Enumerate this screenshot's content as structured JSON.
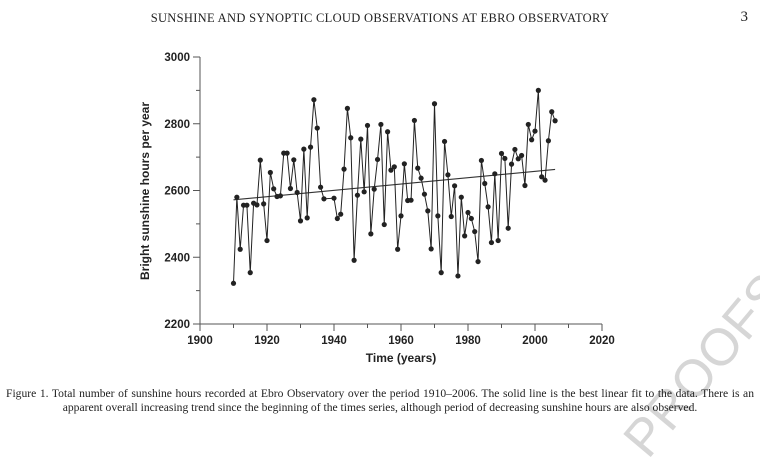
{
  "header": {
    "running_title": "SUNSHINE AND SYNOPTIC CLOUD OBSERVATIONS AT EBRO OBSERVATORY",
    "page_number": "3"
  },
  "watermark": "PROOFS",
  "caption": "Figure 1. Total number of sunshine hours recorded at Ebro Observatory over the period 1910–2006. The solid line is the best linear fit to the data. There is an apparent overall increasing trend since the beginning of the times series, although period of decreasing sunshine hours are also observed.",
  "chart_data": {
    "type": "line",
    "title": "",
    "xlabel": "Time (years)",
    "ylabel": "Bright sunshine hours per year",
    "xlim": [
      1900,
      2020
    ],
    "ylim": [
      2200,
      3000
    ],
    "xticks": [
      "1900",
      "1920",
      "1940",
      "1960",
      "1980",
      "2000",
      "2020"
    ],
    "yticks": [
      "2200",
      "2400",
      "2600",
      "2800",
      "3000"
    ],
    "grid": false,
    "markers": "filled circles",
    "color": "#222222",
    "series": [
      {
        "x": [
          1910,
          1911,
          1912,
          1913,
          1914,
          1915,
          1916,
          1917,
          1918,
          1919,
          1920,
          1921,
          1922,
          1923,
          1924,
          1925,
          1926,
          1927,
          1928,
          1929,
          1930,
          1931,
          1932,
          1933,
          1934,
          1935,
          1936,
          1937,
          1940,
          1941,
          1942,
          1943,
          1944,
          1945,
          1946,
          1947,
          1948,
          1949,
          1950,
          1951,
          1952,
          1953,
          1954,
          1955,
          1956,
          1957,
          1958,
          1959,
          1960,
          1961,
          1962,
          1963,
          1964,
          1965,
          1966,
          1967,
          1968,
          1969,
          1970,
          1971,
          1972,
          1973,
          1974,
          1975,
          1976,
          1977,
          1978,
          1979,
          1980,
          1981,
          1982,
          1983,
          1984,
          1985,
          1986,
          1987,
          1988,
          1989,
          1990,
          1991,
          1992,
          1993,
          1994,
          1995,
          1996,
          1997,
          1998,
          1999,
          2000,
          2001,
          2002,
          2003,
          2004,
          2005,
          2006
        ],
        "y": [
          2322,
          2580,
          2424,
          2556,
          2556,
          2354,
          2562,
          2557,
          2691,
          2560,
          2450,
          2654,
          2605,
          2582,
          2584,
          2712,
          2712,
          2606,
          2692,
          2594,
          2509,
          2724,
          2518,
          2730,
          2872,
          2787,
          2610,
          2575,
          2577,
          2516,
          2529,
          2664,
          2846,
          2758,
          2391,
          2586,
          2754,
          2596,
          2795,
          2470,
          2604,
          2693,
          2798,
          2498,
          2776,
          2661,
          2671,
          2424,
          2524,
          2680,
          2570,
          2571,
          2810,
          2667,
          2637,
          2589,
          2539,
          2425,
          2860,
          2524,
          2354,
          2747,
          2647,
          2522,
          2614,
          2344,
          2580,
          2464,
          2534,
          2516,
          2477,
          2387,
          2690,
          2621,
          2551,
          2444,
          2650,
          2450,
          2711,
          2696,
          2487,
          2679,
          2723,
          2695,
          2705,
          2615,
          2798,
          2752,
          2778,
          2900,
          2641,
          2631,
          2749,
          2836,
          2809
        ]
      }
    ],
    "trend_line": {
      "x": [
        1910,
        2006
      ],
      "y": [
        2572,
        2663
      ]
    }
  }
}
